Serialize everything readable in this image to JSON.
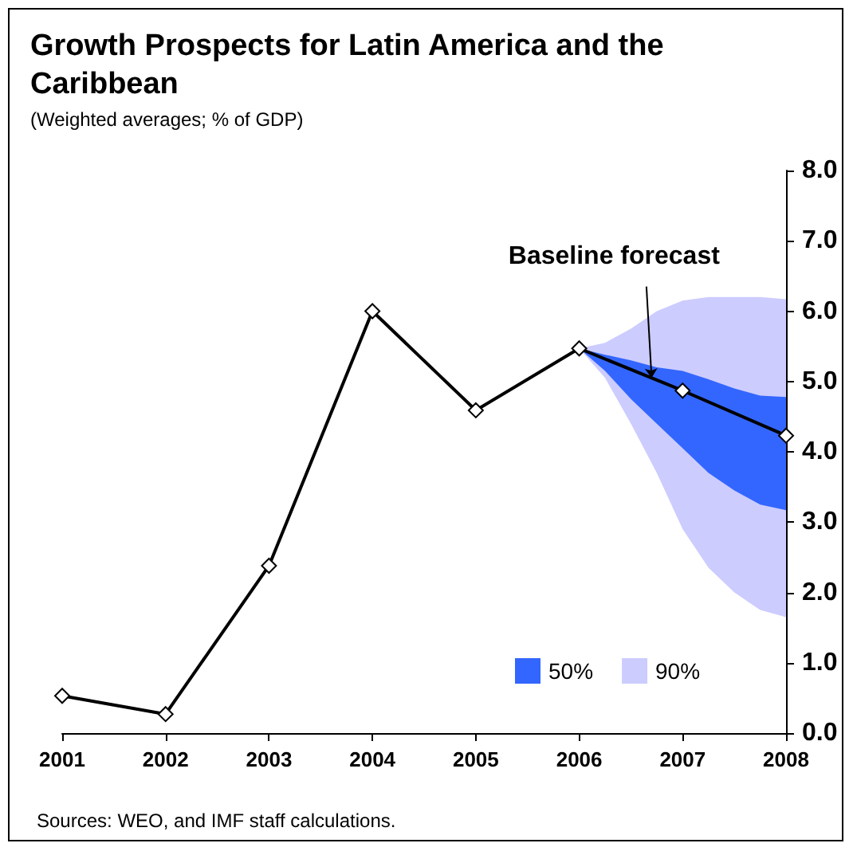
{
  "chart_data": {
    "type": "line",
    "title": "Growth Prospects for Latin America and the Caribbean",
    "subtitle": "(Weighted averages; % of GDP)",
    "x": [
      2001,
      2002,
      2003,
      2004,
      2005,
      2006,
      2007,
      2008
    ],
    "xlim": [
      2001,
      2008
    ],
    "xticks": [
      2001,
      2002,
      2003,
      2004,
      2005,
      2006,
      2007,
      2008
    ],
    "ylim": [
      0,
      8
    ],
    "yticks": [
      {
        "value": 0,
        "label": "0.0"
      },
      {
        "value": 1,
        "label": "1.0"
      },
      {
        "value": 2,
        "label": "2.0"
      },
      {
        "value": 3,
        "label": "3.0"
      },
      {
        "value": 4,
        "label": "4.0"
      },
      {
        "value": 5,
        "label": "5.0"
      },
      {
        "value": 6,
        "label": "6.0"
      },
      {
        "value": 7,
        "label": "7.0"
      },
      {
        "value": 8,
        "label": "8.0"
      }
    ],
    "series": [
      {
        "type": "area",
        "name": "90%",
        "color": "#ccccff",
        "x": [
          2006,
          2006.25,
          2006.5,
          2006.75,
          2007,
          2007.25,
          2007.5,
          2007.75,
          2008
        ],
        "values": [
          null,
          null,
          null,
          null,
          null,
          null,
          null,
          null,
          null
        ],
        "lower": [
          5.47,
          5.05,
          4.4,
          3.7,
          2.9,
          2.35,
          2.0,
          1.75,
          1.65
        ],
        "upper": [
          5.47,
          5.55,
          5.75,
          6.0,
          6.15,
          6.2,
          6.2,
          6.2,
          6.17
        ]
      },
      {
        "type": "area",
        "name": "50%",
        "color": "#3366ff",
        "x": [
          2006,
          2006.25,
          2006.5,
          2006.75,
          2007,
          2007.25,
          2007.5,
          2007.75,
          2008
        ],
        "values": [
          null,
          null,
          null,
          null,
          null,
          null,
          null,
          null,
          null
        ],
        "lower": [
          5.47,
          5.15,
          4.75,
          4.4,
          4.05,
          3.7,
          3.45,
          3.25,
          3.17
        ],
        "upper": [
          5.47,
          5.38,
          5.3,
          5.2,
          5.15,
          5.03,
          4.9,
          4.8,
          4.78
        ]
      },
      {
        "color": "#000000",
        "values": [
          0.53,
          0.27,
          2.38,
          6.0,
          4.59,
          5.47,
          4.87,
          4.23
        ]
      }
    ],
    "marker": "diamond",
    "grid": false,
    "legend": "bottom",
    "annotations": [
      {
        "text": "Baseline forecast",
        "x": 2006.7,
        "y": 5.05
      },
      "Sources: WEO, and IMF staff calculations."
    ]
  }
}
